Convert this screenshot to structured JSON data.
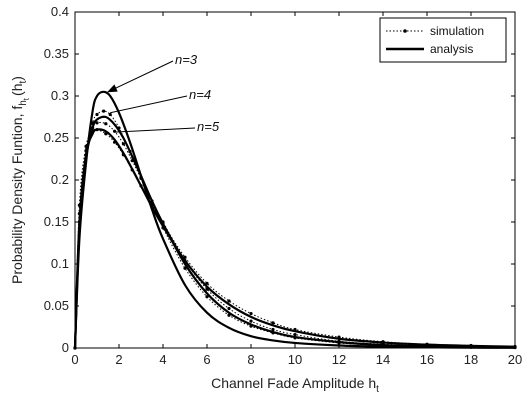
{
  "chart_data": {
    "type": "line",
    "title": "",
    "xlabel": "Channel Fade Amplitude h",
    "xlabel_sub": "t",
    "ylabel": "Probability Density Funtion, f",
    "ylabel_sub": "h",
    "ylabel_subsub": "t",
    "ylabel_arg": "(h",
    "ylabel_arg_sub": "t",
    "ylabel_close": ")",
    "xlim": [
      0,
      20
    ],
    "ylim": [
      0,
      0.4
    ],
    "x_ticks": [
      "0",
      "2",
      "4",
      "6",
      "8",
      "10",
      "12",
      "14",
      "16",
      "18",
      "20"
    ],
    "y_ticks": [
      "0",
      "0.05",
      "0.1",
      "0.15",
      "0.2",
      "0.25",
      "0.3",
      "0.35",
      "0.4"
    ],
    "grid": false,
    "legend_position": "top-right",
    "legend": [
      {
        "label": "simulation",
        "style": "dotted-marker"
      },
      {
        "label": "analysis",
        "style": "solid"
      }
    ],
    "annotations": [
      {
        "text": "n=3",
        "points_to": {
          "x": 1.5,
          "y": 0.305
        }
      },
      {
        "text": "n=4",
        "points_to": {
          "x": 1.6,
          "y": 0.28
        }
      },
      {
        "text": "n=5",
        "points_to": {
          "x": 1.8,
          "y": 0.257
        }
      }
    ],
    "series": [
      {
        "kind": "analysis",
        "n": 3,
        "x": [
          0,
          0.2,
          0.5,
          0.8,
          1.0,
          1.3,
          1.6,
          2.0,
          2.5,
          3.0,
          3.5,
          4.0,
          5.0,
          6.0,
          7.0,
          8.0,
          9.0,
          10.0,
          12.0,
          14.0,
          16.0,
          18.0,
          20.0
        ],
        "y": [
          0,
          0.13,
          0.22,
          0.282,
          0.3,
          0.305,
          0.3,
          0.28,
          0.245,
          0.205,
          0.165,
          0.13,
          0.075,
          0.042,
          0.024,
          0.014,
          0.009,
          0.006,
          0.003,
          0.0015,
          0.0008,
          0.0004,
          0.0002
        ]
      },
      {
        "kind": "analysis",
        "n": 4,
        "x": [
          0,
          0.2,
          0.5,
          0.8,
          1.0,
          1.4,
          1.8,
          2.2,
          2.6,
          3.0,
          3.5,
          4.0,
          5.0,
          6.0,
          7.0,
          8.0,
          9.0,
          10.0,
          12.0,
          14.0,
          16.0,
          18.0,
          20.0
        ],
        "y": [
          0,
          0.14,
          0.225,
          0.262,
          0.272,
          0.275,
          0.266,
          0.25,
          0.228,
          0.205,
          0.175,
          0.148,
          0.1,
          0.065,
          0.042,
          0.028,
          0.019,
          0.013,
          0.007,
          0.0035,
          0.002,
          0.0011,
          0.0006
        ]
      },
      {
        "kind": "analysis",
        "n": 5,
        "x": [
          0,
          0.2,
          0.5,
          0.8,
          1.0,
          1.4,
          1.8,
          2.2,
          2.6,
          3.0,
          3.5,
          4.0,
          5.0,
          6.0,
          7.0,
          8.0,
          9.0,
          10.0,
          12.0,
          14.0,
          16.0,
          18.0,
          20.0
        ],
        "y": [
          0,
          0.15,
          0.23,
          0.255,
          0.26,
          0.258,
          0.248,
          0.232,
          0.213,
          0.193,
          0.168,
          0.145,
          0.104,
          0.073,
          0.052,
          0.037,
          0.027,
          0.02,
          0.011,
          0.0065,
          0.004,
          0.0025,
          0.0015
        ]
      },
      {
        "kind": "simulation",
        "n": 3,
        "x": [
          0,
          0.2,
          0.5,
          0.8,
          1.0,
          1.3,
          1.6,
          2.0,
          2.5,
          3.0,
          3.5,
          4.0,
          5.0,
          6.0,
          7.0,
          8.0,
          9.0,
          10.0,
          12.0,
          14.0,
          16.0,
          18.0,
          20.0
        ],
        "y": [
          0,
          0.15,
          0.23,
          0.268,
          0.278,
          0.282,
          0.278,
          0.262,
          0.234,
          0.203,
          0.172,
          0.143,
          0.095,
          0.061,
          0.039,
          0.026,
          0.018,
          0.012,
          0.006,
          0.003,
          0.0016,
          0.0009,
          0.0005
        ]
      },
      {
        "kind": "simulation",
        "n": 4,
        "x": [
          0,
          0.2,
          0.5,
          0.8,
          1.0,
          1.4,
          1.8,
          2.2,
          2.6,
          3.0,
          3.5,
          4.0,
          5.0,
          6.0,
          7.0,
          8.0,
          9.0,
          10.0,
          12.0,
          14.0,
          16.0,
          18.0,
          20.0
        ],
        "y": [
          0,
          0.16,
          0.235,
          0.262,
          0.268,
          0.267,
          0.258,
          0.243,
          0.223,
          0.202,
          0.175,
          0.15,
          0.104,
          0.07,
          0.047,
          0.032,
          0.022,
          0.016,
          0.008,
          0.0045,
          0.0025,
          0.0014,
          0.0008
        ]
      },
      {
        "kind": "simulation",
        "n": 5,
        "x": [
          0,
          0.2,
          0.5,
          0.8,
          1.0,
          1.4,
          1.8,
          2.2,
          2.6,
          3.0,
          3.5,
          4.0,
          5.0,
          6.0,
          7.0,
          8.0,
          9.0,
          10.0,
          12.0,
          14.0,
          16.0,
          18.0,
          20.0
        ],
        "y": [
          0,
          0.17,
          0.24,
          0.258,
          0.26,
          0.255,
          0.245,
          0.23,
          0.212,
          0.193,
          0.17,
          0.148,
          0.108,
          0.077,
          0.056,
          0.041,
          0.03,
          0.022,
          0.013,
          0.0075,
          0.0045,
          0.003,
          0.0018
        ]
      }
    ]
  }
}
